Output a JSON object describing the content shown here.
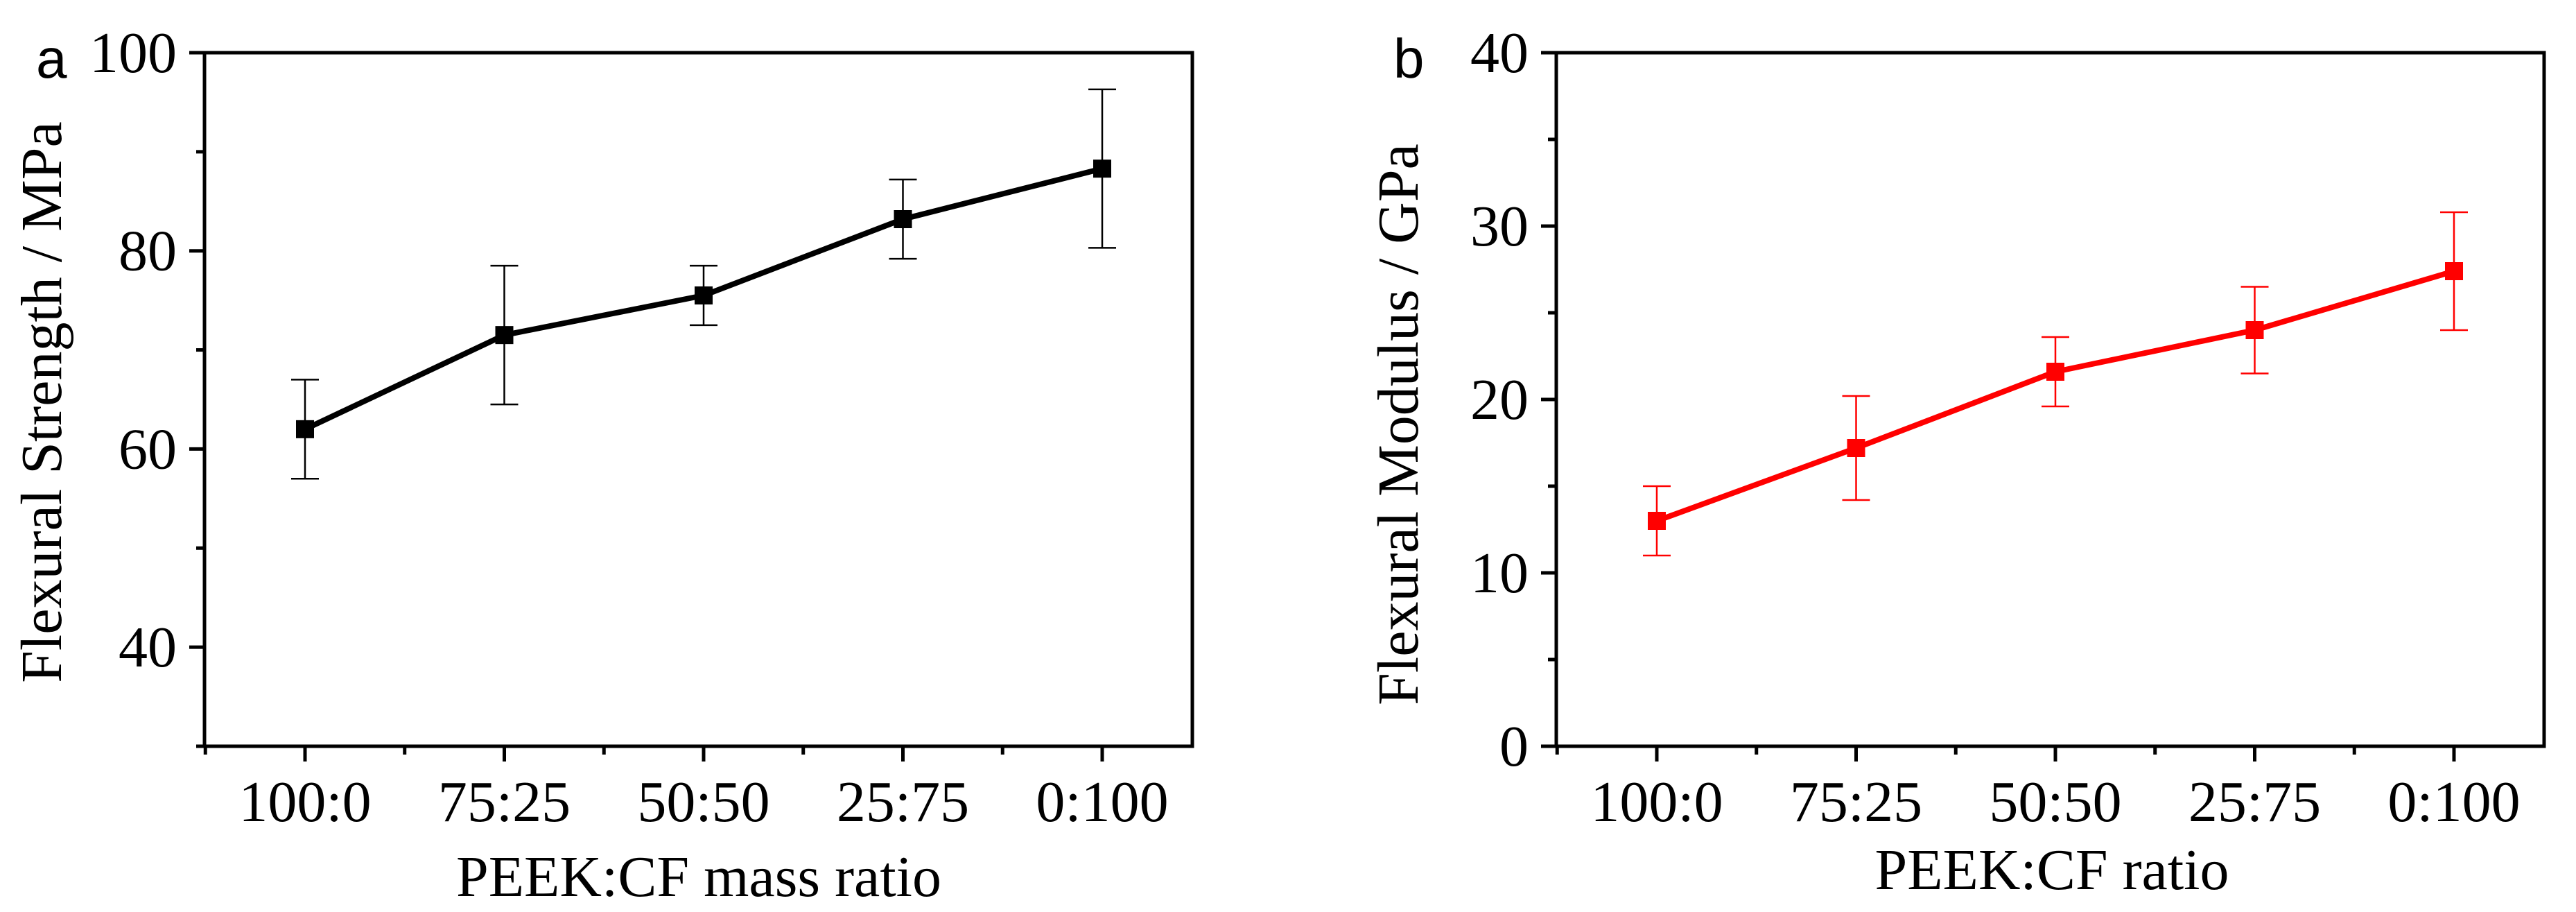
{
  "chart_data": [
    {
      "type": "line",
      "panel_label": "a",
      "title": "",
      "xlabel": "PEEK:CF mass ratio",
      "ylabel": "Flexural Strength / MPa",
      "categories": [
        "100:0",
        "75:25",
        "50:50",
        "25:75",
        "0:100"
      ],
      "ylim": [
        30,
        100
      ],
      "yticks": [
        40,
        60,
        80,
        100
      ],
      "yminor": [
        30,
        50,
        70,
        90
      ],
      "grid": false,
      "color": "#000000",
      "series": [
        {
          "name": "Flexural Strength",
          "values": [
            62.0,
            71.5,
            75.5,
            83.2,
            88.3
          ],
          "errors": [
            5.0,
            7.0,
            3.0,
            4.0,
            8.0
          ]
        }
      ]
    },
    {
      "type": "line",
      "panel_label": "b",
      "title": "",
      "xlabel": "PEEK:CF ratio",
      "ylabel": "Flexural Modulus / GPa",
      "categories": [
        "100:0",
        "75:25",
        "50:50",
        "25:75",
        "0:100"
      ],
      "ylim": [
        0,
        40
      ],
      "yticks": [
        0,
        10,
        20,
        30,
        40
      ],
      "yminor": [
        5,
        15,
        25,
        35
      ],
      "grid": false,
      "color": "#ff0000",
      "series": [
        {
          "name": "Flexural Modulus",
          "values": [
            13.0,
            17.2,
            21.6,
            24.0,
            27.4
          ],
          "errors": [
            2.0,
            3.0,
            2.0,
            2.5,
            3.4
          ]
        }
      ]
    }
  ]
}
